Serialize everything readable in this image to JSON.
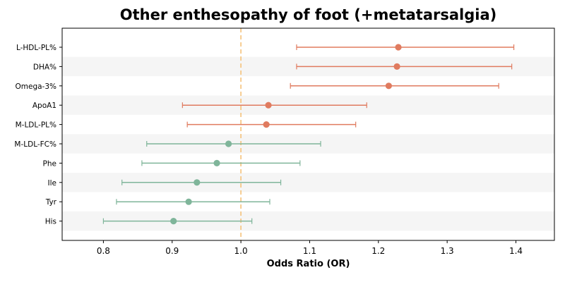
{
  "chart_data": {
    "type": "forest",
    "title": "Other enthesopathy of foot (+metatarsalgia)",
    "xlabel": "Odds Ratio (OR)",
    "ylabel": "",
    "xlim": [
      0.74,
      1.456
    ],
    "xticks": [
      0.8,
      0.9,
      1.0,
      1.1,
      1.2,
      1.3,
      1.4
    ],
    "xtick_labels": [
      "0.8",
      "0.9",
      "1.0",
      "1.1",
      "1.2",
      "1.3",
      "1.4"
    ],
    "reference_line": 1.0,
    "grid": false,
    "alternating_row_shading": true,
    "colors": {
      "risk": "#e07b5f",
      "protective": "#7fb59a",
      "reference": "#f5c27a",
      "band": "#f5f5f5"
    },
    "rows": [
      {
        "label": "L-HDL-PL%",
        "or": 1.229,
        "lower": 1.081,
        "upper": 1.397
      },
      {
        "label": "DHA%",
        "or": 1.227,
        "lower": 1.081,
        "upper": 1.394
      },
      {
        "label": "Omega-3%",
        "or": 1.215,
        "lower": 1.072,
        "upper": 1.375
      },
      {
        "label": "ApoA1",
        "or": 1.04,
        "lower": 0.915,
        "upper": 1.183
      },
      {
        "label": "M-LDL-PL%",
        "or": 1.037,
        "lower": 0.922,
        "upper": 1.167
      },
      {
        "label": "M-LDL-FC%",
        "or": 0.982,
        "lower": 0.863,
        "upper": 1.116
      },
      {
        "label": "Phe",
        "or": 0.965,
        "lower": 0.856,
        "upper": 1.086
      },
      {
        "label": "Ile",
        "or": 0.936,
        "lower": 0.827,
        "upper": 1.058
      },
      {
        "label": "Tyr",
        "or": 0.924,
        "lower": 0.819,
        "upper": 1.042
      },
      {
        "label": "His",
        "or": 0.902,
        "lower": 0.8,
        "upper": 1.016
      }
    ]
  }
}
